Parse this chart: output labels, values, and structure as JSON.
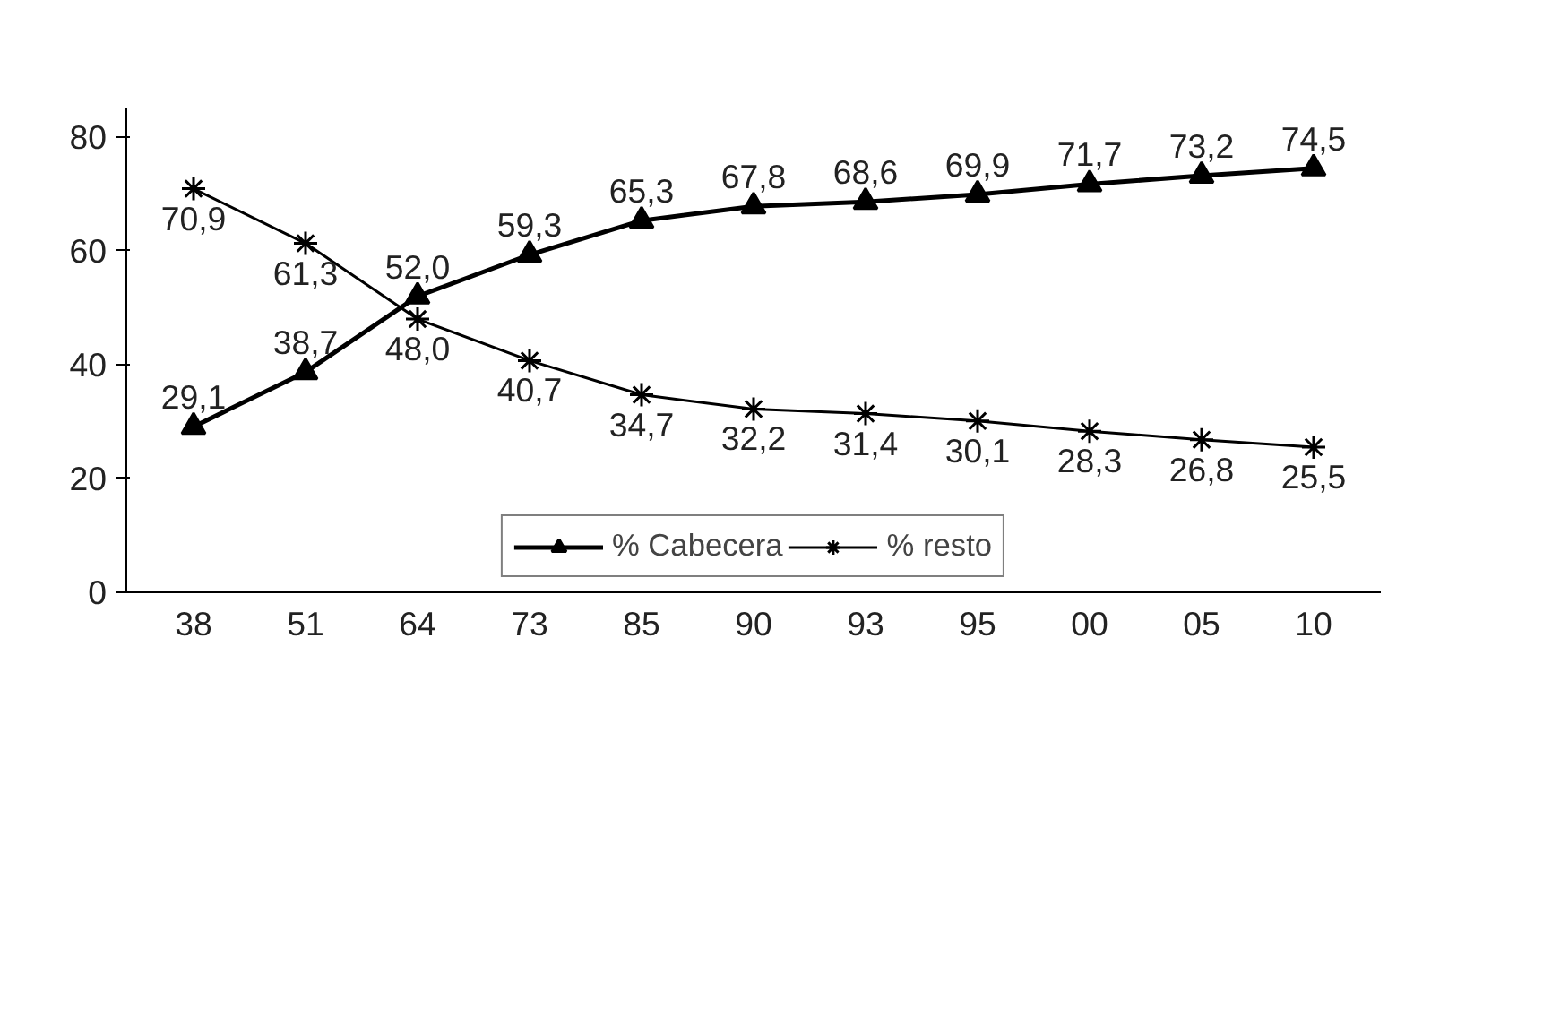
{
  "chart_data": {
    "type": "line",
    "categories": [
      "38",
      "51",
      "64",
      "73",
      "85",
      "90",
      "93",
      "95",
      "00",
      "05",
      "10"
    ],
    "ylim": [
      0,
      85
    ],
    "yticks": [
      0,
      20,
      40,
      60,
      80
    ],
    "grid": false,
    "legend": "bottom",
    "series": [
      {
        "name": "% Cabecera",
        "color": "#000000",
        "marker": "triangle",
        "values": [
          29.1,
          38.7,
          52.0,
          59.3,
          65.3,
          67.8,
          68.6,
          69.9,
          71.7,
          73.2,
          74.5
        ],
        "value_labels": [
          "29,1",
          "38,7",
          "52,0",
          "59,3",
          "65,3",
          "67,8",
          "68,6",
          "69,9",
          "71,7",
          "73,2",
          "74,5"
        ]
      },
      {
        "name": "% resto",
        "color": "#000000",
        "marker": "cross",
        "values": [
          70.9,
          61.3,
          48.0,
          40.7,
          34.7,
          32.2,
          31.4,
          30.1,
          28.3,
          26.8,
          25.5
        ],
        "value_labels": [
          "70,9",
          "61,3",
          "48,0",
          "40,7",
          "34,7",
          "32,2",
          "31,4",
          "30,1",
          "28,3",
          "26,8",
          "25,5"
        ]
      }
    ]
  }
}
